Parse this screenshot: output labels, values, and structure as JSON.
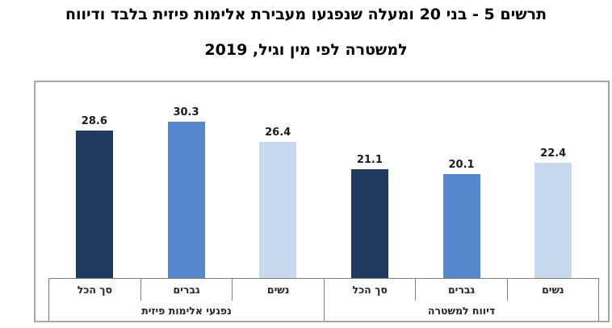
{
  "title": {
    "line1": "תרשים 5 - בני 20 ומעלה שנפגעו מעבירת אלימות פיזית בלבד ודיווח",
    "line2": "למשטרה לפי מין וגיל, 2019"
  },
  "chart_data": {
    "type": "bar",
    "direction": "rtl",
    "groups": [
      {
        "label": "נפגעי אלימות פיזית",
        "categories": [
          "סך הכל",
          "גברים",
          "נשים"
        ],
        "values": [
          28.6,
          30.3,
          26.4
        ]
      },
      {
        "label": "דיווח למשטרה",
        "categories": [
          "סך הכל",
          "גברים",
          "נשים"
        ],
        "values": [
          21.1,
          20.1,
          22.4
        ]
      }
    ],
    "series_names": [
      "סך הכל",
      "גברים",
      "נשים"
    ],
    "bar_colors": [
      "#1F3A5E",
      "#5588CD",
      "#C7D9EE"
    ],
    "ylim": [
      0,
      38
    ],
    "value_labels": true,
    "legend": "none",
    "grid": false
  }
}
